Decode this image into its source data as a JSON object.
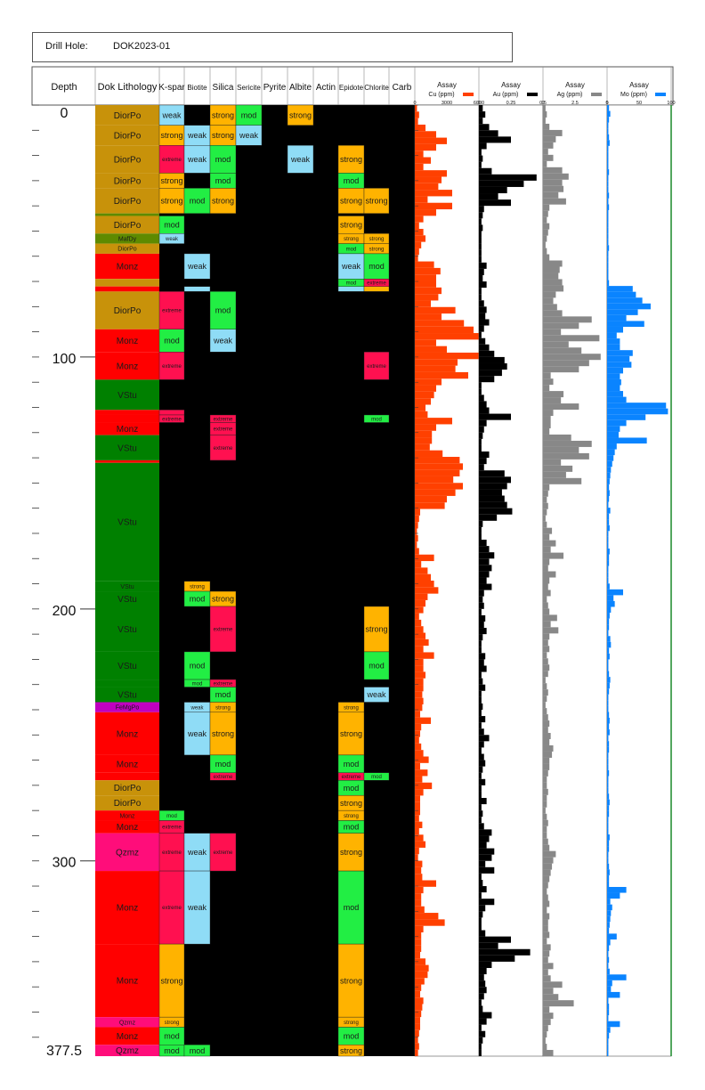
{
  "header": {
    "drill_hole_label": "Drill Hole:",
    "drill_hole_id": "DOK2023-01"
  },
  "columns": {
    "depth": "Depth",
    "lithology": "Dok Lithology",
    "kspar": "K-spar",
    "biotite": "Biotite",
    "silica": "Silica",
    "sericite": "Sericite",
    "pyrite": "Pyrite",
    "albite": "Albite",
    "actin": "Actin",
    "epidote": "Epidote",
    "chlorite": "Chlorite",
    "carb": "Carb"
  },
  "colors": {
    "DiorPo": "#c8920a",
    "Monz": "#ff0000",
    "VStu": "#008000",
    "MafDy": "#5e8a00",
    "Qzmz": "#ff0d7a",
    "FeMgPo": "#c000c0",
    "weak": "#8fdcf6",
    "mod": "#22ee44",
    "strong": "#ffb300",
    "extreme": "#ff1050",
    "cu": "#ff4000",
    "au": "#000000",
    "ag": "#888888",
    "mo": "#0a84ff"
  },
  "depth_axis": {
    "min": 0,
    "max": 377.5,
    "ticks": [
      "0",
      "100",
      "200",
      "300",
      "377.5"
    ],
    "minor_step": 10
  },
  "chart_data": {
    "type": "strip-log",
    "intervals": [
      [
        0,
        8,
        "DiorPo",
        "weak",
        null,
        "strong",
        "mod",
        "strong",
        null
      ],
      [
        8,
        16,
        "DiorPo",
        "strong",
        "weak",
        "strong",
        "weak",
        null,
        null
      ],
      [
        16,
        27,
        "DiorPo",
        "extreme",
        "weak",
        "mod",
        null,
        "weak",
        "strong"
      ],
      [
        27,
        33,
        "DiorPo",
        "strong",
        null,
        "mod",
        null,
        null,
        "mod"
      ],
      [
        33,
        43,
        "DiorPo",
        "strong",
        "mod",
        "strong",
        null,
        null,
        "strong",
        "strong"
      ],
      [
        43,
        44,
        "MafDy"
      ],
      [
        44,
        51,
        "DiorPo",
        "mod",
        null,
        null,
        null,
        null,
        "strong"
      ],
      [
        51,
        55,
        "MafDy",
        "weak",
        null,
        null,
        null,
        null,
        "strong",
        "strong"
      ],
      [
        55,
        59,
        "DiorPo",
        null,
        null,
        null,
        null,
        null,
        "mod",
        "strong"
      ],
      [
        59,
        69,
        "Monz",
        null,
        "weak",
        null,
        null,
        null,
        "weak",
        "mod"
      ],
      [
        69,
        72,
        "DiorPo",
        null,
        null,
        null,
        null,
        null,
        "mod",
        "extreme"
      ],
      [
        72,
        74,
        "Monz",
        null,
        "weak",
        null,
        null,
        null,
        "weak",
        "strong"
      ],
      [
        74,
        89,
        "DiorPo",
        "extreme",
        null,
        "mod"
      ],
      [
        89,
        98,
        "Monz",
        "mod",
        null,
        "weak"
      ],
      [
        98,
        109,
        "Monz",
        "extreme",
        null,
        null,
        null,
        null,
        null,
        "extreme"
      ],
      [
        109,
        121,
        "VStu"
      ],
      [
        121,
        123,
        "Monz",
        "extreme"
      ],
      [
        123,
        126,
        "Monz",
        "extreme",
        null,
        "extreme",
        null,
        null,
        null,
        "mod"
      ],
      [
        126,
        131,
        "Monz",
        null,
        null,
        "extreme"
      ],
      [
        131,
        141,
        "VStu",
        null,
        null,
        "extreme"
      ],
      [
        141,
        142,
        "Monz"
      ],
      [
        142,
        189,
        "VStu"
      ],
      [
        189,
        193,
        "VStu",
        null,
        "strong"
      ],
      [
        193,
        199,
        "VStu",
        null,
        "mod",
        "strong"
      ],
      [
        199,
        217,
        "VStu",
        null,
        null,
        "extreme",
        null,
        null,
        null,
        "strong"
      ],
      [
        217,
        228,
        "VStu",
        null,
        "mod",
        null,
        null,
        null,
        null,
        "mod"
      ],
      [
        228,
        231,
        "VStu",
        null,
        "mod",
        "extreme"
      ],
      [
        231,
        237,
        "VStu",
        null,
        null,
        "mod",
        null,
        null,
        null,
        "weak"
      ],
      [
        237,
        241,
        "FeMgPo",
        null,
        "weak",
        "strong",
        null,
        null,
        "strong"
      ],
      [
        241,
        258,
        "Monz",
        null,
        "weak",
        "strong",
        null,
        null,
        "strong"
      ],
      [
        258,
        265,
        "Monz",
        null,
        null,
        "mod",
        null,
        null,
        "mod"
      ],
      [
        265,
        268,
        "Monz",
        null,
        null,
        "extreme",
        null,
        null,
        "extreme",
        "mod"
      ],
      [
        268,
        274,
        "DiorPo",
        null,
        null,
        null,
        null,
        null,
        "mod"
      ],
      [
        274,
        280,
        "DiorPo",
        null,
        null,
        null,
        null,
        null,
        "strong"
      ],
      [
        280,
        284,
        "Monz",
        "mod",
        null,
        null,
        null,
        null,
        "strong"
      ],
      [
        284,
        289,
        "Monz",
        "extreme",
        null,
        null,
        null,
        null,
        "mod"
      ],
      [
        289,
        304,
        "Qzmz",
        "extreme",
        "weak",
        "extreme",
        null,
        null,
        "strong"
      ],
      [
        304,
        333,
        "Monz",
        "extreme",
        "weak",
        null,
        null,
        null,
        "mod"
      ],
      [
        333,
        362,
        "Monz",
        "strong",
        null,
        null,
        null,
        null,
        "strong"
      ],
      [
        362,
        366,
        "Qzmz",
        "strong",
        null,
        null,
        null,
        null,
        "strong"
      ],
      [
        366,
        373,
        "Monz",
        "mod",
        null,
        null,
        null,
        null,
        "mod"
      ],
      [
        373,
        377.5,
        "Qzmz",
        "mod",
        "mod",
        null,
        null,
        null,
        "strong"
      ]
    ],
    "assays": [
      {
        "name": "Cu (ppm)",
        "title": "Assay",
        "scale_labels": [
          "0",
          "3000",
          "6000"
        ],
        "max": 6000,
        "values": [
          200,
          400,
          300,
          1000,
          2000,
          3000,
          2000,
          800,
          1500,
          800,
          3000,
          2500,
          2200,
          3500,
          1200,
          3500,
          2000,
          800,
          400,
          800,
          1000,
          600,
          400,
          300,
          1800,
          2400,
          2000,
          2000,
          2500,
          2200,
          1500,
          3800,
          2500,
          4600,
          5500,
          6000,
          2000,
          3000,
          6000,
          4000,
          3800,
          5000,
          2500,
          2000,
          1800,
          1500,
          1000,
          1200,
          3500,
          2000,
          1600,
          1600,
          1400,
          2600,
          4200,
          4500,
          4200,
          3600,
          4500,
          3800,
          3000,
          2800,
          500,
          400,
          300,
          200,
          300,
          200,
          400,
          1800,
          600,
          1200,
          1500,
          1800,
          2200,
          1200,
          1000,
          800,
          400,
          600,
          800,
          1000,
          1300,
          800,
          1800,
          800,
          800,
          1000,
          800,
          800,
          700,
          800,
          700,
          500,
          1500,
          600,
          500,
          400,
          600,
          800,
          1300,
          500,
          1200,
          700,
          1600,
          800,
          500,
          500,
          500,
          400,
          700,
          400,
          800,
          1000,
          400,
          300,
          700,
          600,
          700,
          2000,
          800,
          600,
          600,
          900,
          2200,
          2800,
          800,
          600,
          600,
          600,
          500,
          1000,
          1300,
          1200,
          900,
          600,
          500,
          800,
          700,
          600,
          500,
          500,
          400,
          300,
          400,
          300
        ]
      },
      {
        "name": "Au (ppm)",
        "title": "Assay",
        "scale_labels": [
          "0",
          "0.25",
          "0.5"
        ],
        "max": 0.5,
        "values": [
          0.03,
          0.05,
          0.03,
          0.08,
          0.15,
          0.25,
          0.06,
          0.02,
          0.03,
          0.02,
          0.1,
          0.45,
          0.35,
          0.22,
          0.15,
          0.25,
          0.04,
          0.03,
          0.02,
          0.03,
          0.02,
          0.02,
          0.02,
          0.02,
          0.02,
          0.06,
          0.04,
          0.03,
          0.06,
          0.02,
          0.02,
          0.04,
          0.06,
          0.05,
          0.08,
          0.04,
          0.02,
          0.05,
          0.08,
          0.12,
          0.2,
          0.22,
          0.18,
          0.12,
          0.02,
          0.02,
          0.04,
          0.06,
          0.08,
          0.25,
          0.06,
          0.04,
          0.03,
          0.02,
          0.02,
          0.08,
          0.06,
          0.04,
          0.2,
          0.25,
          0.22,
          0.18,
          0.2,
          0.22,
          0.26,
          0.14,
          0.03,
          0.02,
          0.02,
          0.06,
          0.08,
          0.12,
          0.08,
          0.1,
          0.08,
          0.06,
          0.1,
          0.04,
          0.03,
          0.04,
          0.02,
          0.05,
          0.04,
          0.06,
          0.03,
          0.02,
          0.02,
          0.05,
          0.04,
          0.06,
          0.02,
          0.03,
          0.05,
          0.02,
          0.02,
          0.03,
          0.02,
          0.05,
          0.02,
          0.04,
          0.08,
          0.04,
          0.02,
          0.04,
          0.05,
          0.03,
          0.02,
          0.05,
          0.02,
          0.02,
          0.06,
          0.02,
          0.03,
          0.02,
          0.04,
          0.1,
          0.08,
          0.06,
          0.12,
          0.1,
          0.05,
          0.12,
          0.02,
          0.03,
          0.06,
          0.02,
          0.12,
          0.05,
          0.03,
          0.02,
          0.02,
          0.05,
          0.25,
          0.15,
          0.4,
          0.28,
          0.1,
          0.06,
          0.04,
          0.05,
          0.06,
          0.04,
          0.02,
          0.03,
          0.1,
          0.06,
          0.02,
          0.05,
          0.03,
          0.02,
          0.02
        ]
      },
      {
        "name": "Ag (ppm)",
        "title": "Assay",
        "scale_labels": [
          "0",
          "2.5",
          "5"
        ],
        "max": 5,
        "values": [
          0.2,
          0.3,
          0.2,
          0.5,
          1.5,
          1.0,
          0.8,
          0.4,
          0.8,
          0.3,
          1.5,
          2.0,
          1.5,
          1.6,
          1.2,
          1.8,
          0.5,
          0.4,
          0.3,
          0.5,
          0.4,
          0.3,
          0.2,
          0.3,
          0.5,
          1.5,
          1.3,
          1.2,
          1.5,
          1.6,
          1.0,
          0.8,
          1.1,
          1.5,
          3.8,
          2.8,
          1.4,
          4.4,
          2.0,
          3.0,
          4.5,
          3.6,
          2.8,
          0.6,
          0.8,
          0.5,
          1.6,
          1.4,
          2.8,
          0.8,
          0.6,
          0.6,
          0.5,
          2.2,
          3.8,
          2.8,
          3.6,
          1.4,
          2.3,
          1.8,
          3.0,
          0.5,
          0.4,
          0.3,
          0.4,
          0.3,
          0.2,
          0.3,
          0.7,
          0.5,
          1.0,
          0.6,
          1.6,
          0.5,
          0.4,
          1.0,
          0.5,
          0.4,
          0.6,
          0.3,
          0.4,
          0.5,
          1.1,
          0.6,
          1.2,
          0.5,
          0.4,
          0.5,
          0.3,
          0.4,
          0.5,
          0.4,
          0.2,
          0.3,
          0.4,
          0.3,
          0.2,
          0.3,
          0.4,
          0.5,
          0.4,
          0.6,
          0.5,
          0.8,
          0.7,
          0.5,
          0.5,
          0.4,
          0.3,
          0.3,
          0.4,
          0.3,
          0.3,
          0.2,
          0.3,
          0.4,
          0.3,
          0.3,
          0.4,
          0.5,
          1.0,
          0.8,
          0.7,
          0.6,
          0.5,
          0.4,
          0.3,
          0.4,
          0.5,
          0.3,
          0.5,
          0.4,
          0.4,
          0.5,
          0.3,
          0.6,
          0.5,
          0.4,
          0.8,
          0.4,
          0.6,
          1.5,
          0.8,
          1.2,
          2.4,
          0.5,
          0.8,
          0.6,
          0.4,
          0.3,
          0.2,
          0.3,
          0.8
        ]
      },
      {
        "name": "Mo (ppm)",
        "title": "Assay",
        "scale_labels": [
          "0",
          "50",
          "100"
        ],
        "max": 100,
        "values": [
          3,
          5,
          3,
          2,
          2,
          3,
          4,
          2,
          2,
          2,
          2,
          3,
          2,
          2,
          2,
          3,
          2,
          3,
          2,
          2,
          2,
          2,
          2,
          2,
          3,
          2,
          2,
          2,
          2,
          2,
          3,
          40,
          45,
          55,
          68,
          48,
          30,
          58,
          25,
          15,
          20,
          20,
          40,
          35,
          38,
          25,
          20,
          22,
          20,
          25,
          30,
          92,
          95,
          60,
          30,
          20,
          18,
          62,
          15,
          12,
          10,
          8,
          6,
          5,
          4,
          3,
          4,
          3,
          2,
          5,
          3,
          3,
          4,
          2,
          2,
          2,
          4,
          3,
          3,
          2,
          2,
          2,
          4,
          25,
          10,
          12,
          6,
          4,
          3,
          3,
          2,
          5,
          6,
          3,
          4,
          2,
          2,
          3,
          5,
          4,
          3,
          2,
          2,
          2,
          3,
          4,
          3,
          4,
          2,
          3,
          3,
          2,
          2,
          2,
          3,
          2,
          2,
          2,
          3,
          4,
          3,
          3,
          2,
          2,
          2,
          4,
          3,
          3,
          2,
          2,
          3,
          4,
          3,
          3,
          30,
          20,
          5,
          8,
          6,
          5,
          4,
          3,
          15,
          5,
          3,
          2,
          3,
          2,
          4,
          30,
          8,
          6,
          20,
          2,
          3,
          3,
          2,
          20,
          5,
          3,
          2,
          2,
          2
        ]
      }
    ]
  }
}
